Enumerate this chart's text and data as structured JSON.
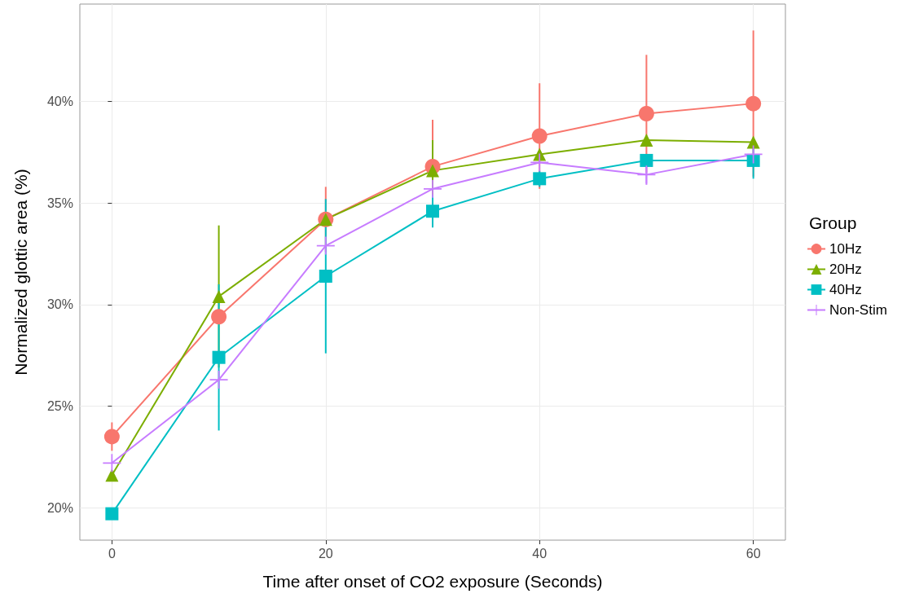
{
  "chart_data": {
    "type": "line",
    "xlabel": "Time after onset of CO2 exposure (Seconds)",
    "ylabel": "Normalized glottic area (%)",
    "legend_title": "Group",
    "legend": "right",
    "grid": true,
    "x": [
      0,
      10,
      20,
      30,
      40,
      50,
      60
    ],
    "xlim": [
      -3,
      63
    ],
    "xticks": [
      0,
      20,
      40,
      60
    ],
    "ylim": [
      18.4,
      44.8
    ],
    "yticks": [
      {
        "value": 20,
        "label": "20%"
      },
      {
        "value": 25,
        "label": "25%"
      },
      {
        "value": 30,
        "label": "30%"
      },
      {
        "value": 35,
        "label": "35%"
      },
      {
        "value": 40,
        "label": "40%"
      }
    ],
    "series": [
      {
        "name": "10Hz",
        "color": "#f8766d",
        "marker": "circle",
        "values": [
          23.5,
          29.4,
          34.2,
          36.8,
          38.3,
          39.4,
          39.9
        ],
        "errors": [
          0.7,
          null,
          1.6,
          2.3,
          2.6,
          2.9,
          3.6
        ]
      },
      {
        "name": "20Hz",
        "color": "#7cae00",
        "marker": "triangle",
        "values": [
          21.6,
          30.4,
          34.2,
          36.6,
          37.4,
          38.1,
          38.0
        ],
        "errors": [
          null,
          3.5,
          null,
          1.5,
          null,
          null,
          null
        ]
      },
      {
        "name": "40Hz",
        "color": "#00bfc4",
        "marker": "square",
        "values": [
          19.7,
          27.4,
          31.4,
          34.6,
          36.2,
          37.1,
          37.1
        ],
        "errors": [
          null,
          3.6,
          3.8,
          0.8,
          0.4,
          null,
          0.9
        ]
      },
      {
        "name": "Non-Stim",
        "color": "#c77cff",
        "marker": "cross",
        "values": [
          22.2,
          26.3,
          32.9,
          35.7,
          37.0,
          36.4,
          37.4
        ],
        "errors": [
          null,
          null,
          null,
          null,
          null,
          0.5,
          null
        ]
      }
    ]
  }
}
